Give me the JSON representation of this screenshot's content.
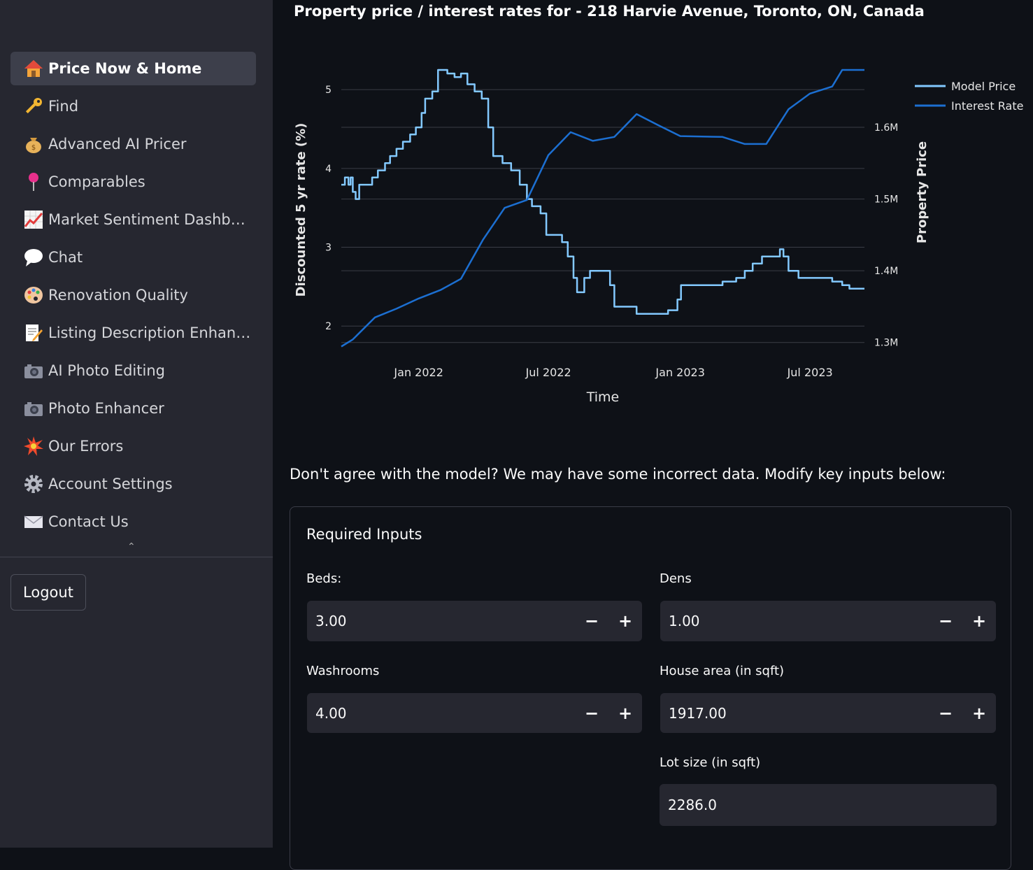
{
  "sidebar": {
    "items": [
      {
        "label": "Price Now & Home",
        "icon": "house-icon",
        "active": true
      },
      {
        "label": "Find",
        "icon": "key-icon",
        "active": false
      },
      {
        "label": "Advanced AI Pricer",
        "icon": "money-bag-icon",
        "active": false
      },
      {
        "label": "Comparables",
        "icon": "pushpin-icon",
        "active": false
      },
      {
        "label": "Market Sentiment Dashboard",
        "icon": "chart-increasing-icon",
        "active": false
      },
      {
        "label": "Chat",
        "icon": "speech-bubble-icon",
        "active": false
      },
      {
        "label": "Renovation Quality",
        "icon": "palette-icon",
        "active": false
      },
      {
        "label": "Listing Description Enhancer",
        "icon": "memo-icon",
        "active": false
      },
      {
        "label": "AI Photo Editing",
        "icon": "camera-icon",
        "active": false
      },
      {
        "label": "Photo Enhancer",
        "icon": "camera-icon",
        "active": false
      },
      {
        "label": "Our Errors",
        "icon": "collision-icon",
        "active": false
      },
      {
        "label": "Account Settings",
        "icon": "gear-icon",
        "active": false
      },
      {
        "label": "Contact Us",
        "icon": "envelope-icon",
        "active": false
      }
    ],
    "logout_label": "Logout"
  },
  "chart": {
    "title": "Property price / interest rates for  - 218 Harvie Avenue, Toronto, ON, Canada"
  },
  "chart_data": {
    "type": "line",
    "title": "Property price / interest rates for  - 218 Harvie Avenue, Toronto, ON, Canada",
    "xlabel": "Time",
    "ylabel": "Discounted 5 yr rate (%)",
    "y2label": "Property Price",
    "x_ticks": [
      "Jan 2022",
      "Jul 2022",
      "Jan 2023",
      "Jul 2023"
    ],
    "y_ticks": [
      2,
      3,
      4,
      5
    ],
    "y2_ticks": [
      "1.3M",
      "1.4M",
      "1.5M",
      "1.6M"
    ],
    "legend_position": "top-right",
    "ylim": [
      1.7,
      5.25
    ],
    "y2lim": [
      1.29,
      1.68
    ],
    "series": [
      {
        "name": "Model Price",
        "axis": "y2",
        "color": "#83c9ff",
        "points": [
          [
            "2021-09-15",
            1.52
          ],
          [
            "2021-09-20",
            1.53
          ],
          [
            "2021-09-25",
            1.52
          ],
          [
            "2021-09-28",
            1.53
          ],
          [
            "2021-10-01",
            1.51
          ],
          [
            "2021-10-05",
            1.5
          ],
          [
            "2021-10-10",
            1.52
          ],
          [
            "2021-10-20",
            1.52
          ],
          [
            "2021-10-28",
            1.53
          ],
          [
            "2021-11-05",
            1.54
          ],
          [
            "2021-11-15",
            1.55
          ],
          [
            "2021-11-22",
            1.56
          ],
          [
            "2021-12-01",
            1.57
          ],
          [
            "2021-12-10",
            1.58
          ],
          [
            "2021-12-20",
            1.59
          ],
          [
            "2021-12-28",
            1.6
          ],
          [
            "2022-01-05",
            1.62
          ],
          [
            "2022-01-10",
            1.64
          ],
          [
            "2022-01-20",
            1.65
          ],
          [
            "2022-01-28",
            1.68
          ],
          [
            "2022-02-10",
            1.675
          ],
          [
            "2022-02-20",
            1.67
          ],
          [
            "2022-03-01",
            1.675
          ],
          [
            "2022-03-10",
            1.66
          ],
          [
            "2022-03-20",
            1.65
          ],
          [
            "2022-03-30",
            1.64
          ],
          [
            "2022-04-08",
            1.6
          ],
          [
            "2022-04-15",
            1.56
          ],
          [
            "2022-04-28",
            1.55
          ],
          [
            "2022-05-10",
            1.54
          ],
          [
            "2022-05-22",
            1.52
          ],
          [
            "2022-06-01",
            1.5
          ],
          [
            "2022-06-08",
            1.49
          ],
          [
            "2022-06-20",
            1.48
          ],
          [
            "2022-06-28",
            1.45
          ],
          [
            "2022-07-08",
            1.45
          ],
          [
            "2022-07-20",
            1.44
          ],
          [
            "2022-07-28",
            1.42
          ],
          [
            "2022-08-05",
            1.39
          ],
          [
            "2022-08-10",
            1.37
          ],
          [
            "2022-08-20",
            1.39
          ],
          [
            "2022-08-28",
            1.4
          ],
          [
            "2022-09-15",
            1.4
          ],
          [
            "2022-09-25",
            1.38
          ],
          [
            "2022-10-01",
            1.35
          ],
          [
            "2022-10-20",
            1.35
          ],
          [
            "2022-11-01",
            1.34
          ],
          [
            "2022-11-15",
            1.34
          ],
          [
            "2022-12-01",
            1.34
          ],
          [
            "2022-12-15",
            1.345
          ],
          [
            "2022-12-28",
            1.36
          ],
          [
            "2023-01-02",
            1.38
          ],
          [
            "2023-02-01",
            1.38
          ],
          [
            "2023-03-01",
            1.385
          ],
          [
            "2023-03-20",
            1.39
          ],
          [
            "2023-04-01",
            1.4
          ],
          [
            "2023-04-12",
            1.41
          ],
          [
            "2023-04-25",
            1.42
          ],
          [
            "2023-05-10",
            1.42
          ],
          [
            "2023-05-20",
            1.43
          ],
          [
            "2023-05-25",
            1.42
          ],
          [
            "2023-06-01",
            1.4
          ],
          [
            "2023-06-15",
            1.39
          ],
          [
            "2023-07-01",
            1.39
          ],
          [
            "2023-07-20",
            1.39
          ],
          [
            "2023-08-01",
            1.385
          ],
          [
            "2023-08-15",
            1.38
          ],
          [
            "2023-08-25",
            1.375
          ],
          [
            "2023-09-15",
            1.375
          ]
        ]
      },
      {
        "name": "Interest Rate",
        "axis": "y",
        "color": "#1c6fd1",
        "points": [
          [
            "2021-09-15",
            1.74
          ],
          [
            "2021-10-01",
            1.83
          ],
          [
            "2021-11-01",
            2.11
          ],
          [
            "2021-12-01",
            2.22
          ],
          [
            "2022-01-01",
            2.35
          ],
          [
            "2022-02-01",
            2.46
          ],
          [
            "2022-03-01",
            2.6
          ],
          [
            "2022-04-01",
            3.1
          ],
          [
            "2022-05-01",
            3.5
          ],
          [
            "2022-06-01",
            3.6
          ],
          [
            "2022-07-01",
            4.17
          ],
          [
            "2022-08-01",
            4.46
          ],
          [
            "2022-09-01",
            4.35
          ],
          [
            "2022-10-01",
            4.4
          ],
          [
            "2022-11-01",
            4.69
          ],
          [
            "2022-12-01",
            4.55
          ],
          [
            "2023-01-01",
            4.41
          ],
          [
            "2023-03-01",
            4.4
          ],
          [
            "2023-04-01",
            4.31
          ],
          [
            "2023-05-01",
            4.31
          ],
          [
            "2023-06-01",
            4.75
          ],
          [
            "2023-07-01",
            4.95
          ],
          [
            "2023-08-01",
            5.04
          ],
          [
            "2023-08-15",
            5.25
          ],
          [
            "2023-09-15",
            5.25
          ]
        ]
      }
    ]
  },
  "prompt_text": "Don't agree with the model? We may have some incorrect data. Modify key inputs below:",
  "form": {
    "title": "Required Inputs",
    "beds": {
      "label": "Beds:",
      "value": "3.00"
    },
    "dens": {
      "label": "Dens",
      "value": "1.00"
    },
    "washrooms": {
      "label": "Washrooms",
      "value": "4.00"
    },
    "area": {
      "label": "House area (in sqft)",
      "value": "1917.00"
    },
    "lot": {
      "label": "Lot size (in sqft)",
      "value": "2286.0"
    },
    "minus": "−",
    "plus": "+"
  }
}
